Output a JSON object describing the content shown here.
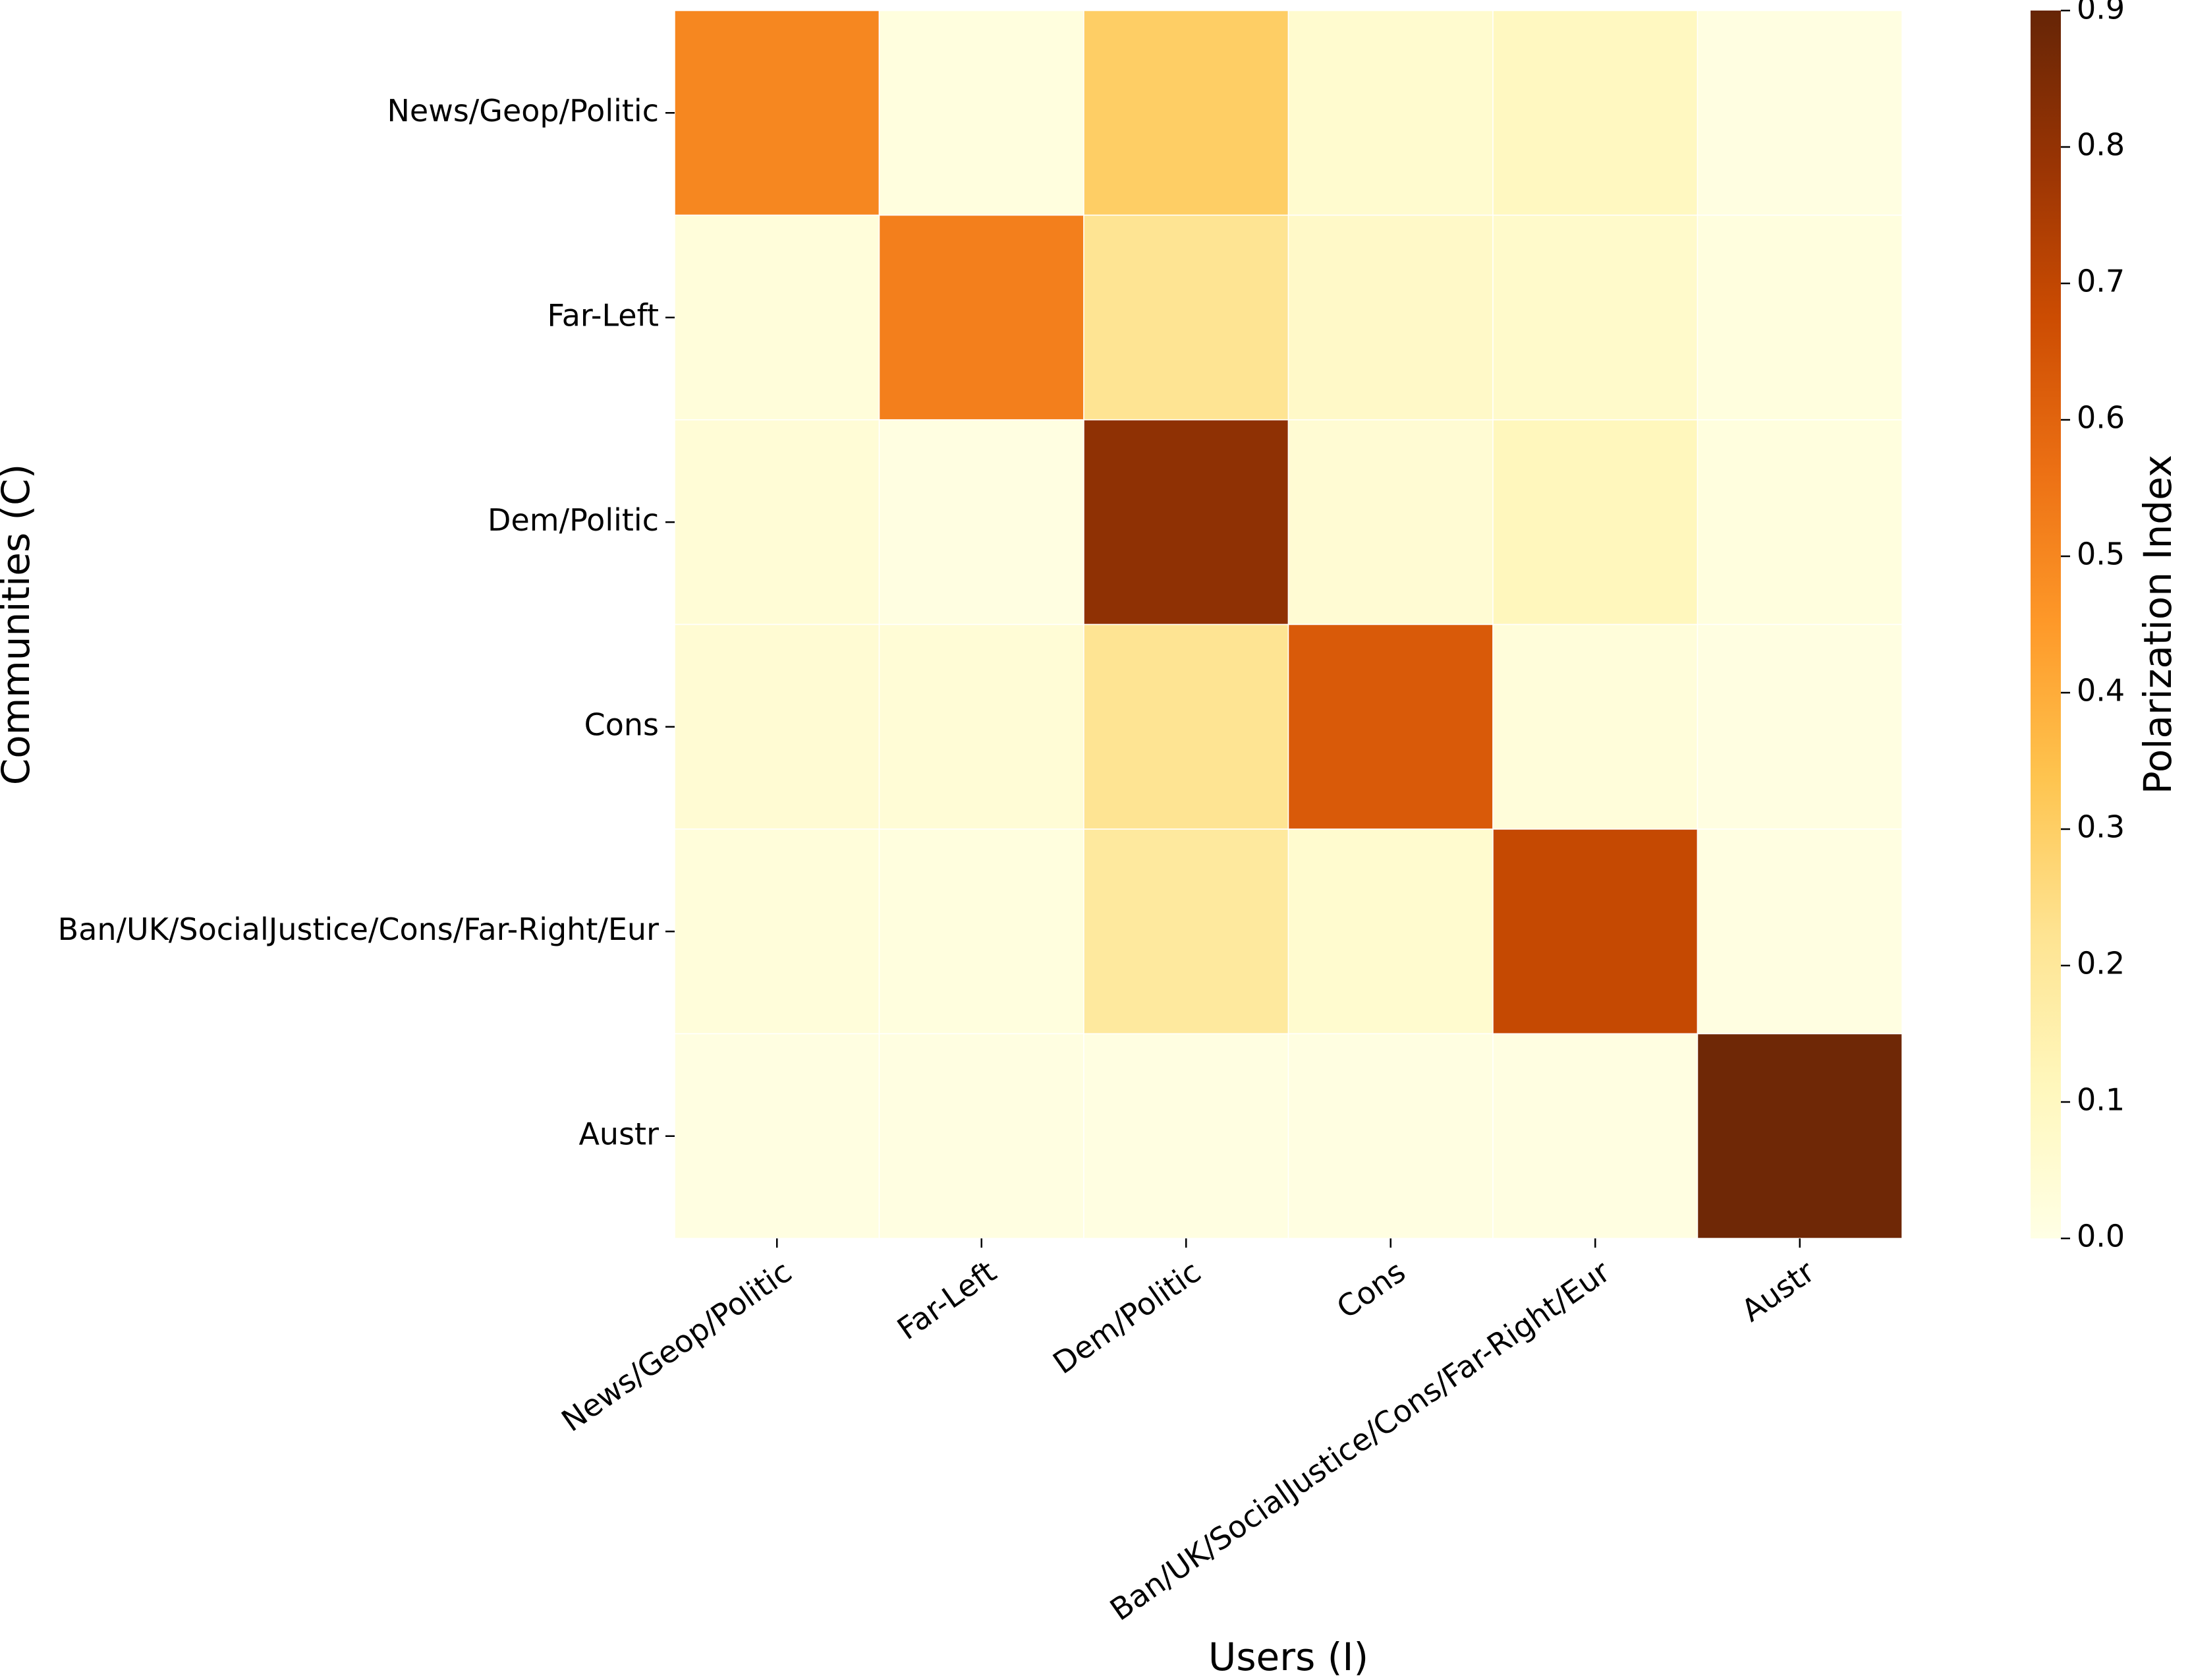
{
  "chart_data": {
    "type": "heatmap",
    "title": "",
    "xlabel": "Users (I)",
    "ylabel": "Communities (C)",
    "x_categories": [
      "News/Geop/Politic",
      "Far-Left",
      "Dem/Politic",
      "Cons",
      "Ban/UK/SocialJustice/Cons/Far-Right/Eur",
      "Austr"
    ],
    "y_categories": [
      "News/Geop/Politic",
      "Far-Left",
      "Dem/Politic",
      "Cons",
      "Ban/UK/SocialJustice/Cons/Far-Right/Eur",
      "Austr"
    ],
    "values": [
      [
        0.5,
        0.02,
        0.3,
        0.06,
        0.1,
        0.01
      ],
      [
        0.03,
        0.52,
        0.22,
        0.08,
        0.07,
        0.02
      ],
      [
        0.04,
        0.01,
        0.81,
        0.05,
        0.11,
        0.02
      ],
      [
        0.05,
        0.04,
        0.22,
        0.63,
        0.03,
        0.01
      ],
      [
        0.03,
        0.02,
        0.19,
        0.06,
        0.69,
        0.01
      ],
      [
        0.01,
        0.01,
        0.01,
        0.01,
        0.01,
        0.88
      ]
    ],
    "colorbar": {
      "label": "Polarization Index",
      "range": [
        0.0,
        0.9
      ],
      "ticks": [
        "0.0",
        "0.1",
        "0.2",
        "0.3",
        "0.4",
        "0.5",
        "0.6",
        "0.7",
        "0.8",
        "0.9"
      ],
      "colormap": "YlOrBr",
      "stops": [
        "#ffffe5",
        "#fff7bc",
        "#fee391",
        "#fec44f",
        "#fe9929",
        "#ec7014",
        "#cc4c02",
        "#993404",
        "#662506"
      ]
    },
    "cell_border_color": "#ffffff"
  }
}
